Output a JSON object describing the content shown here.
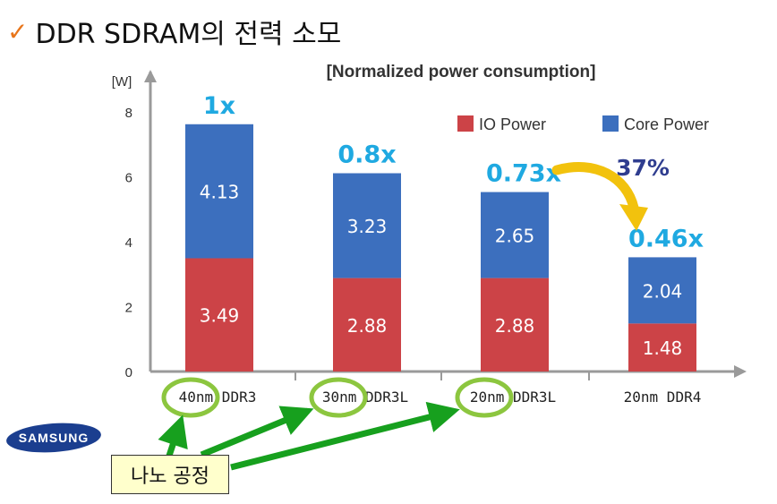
{
  "page": {
    "check_icon": "checkmark-icon",
    "title": "DDR SDRAM의 전력 소모"
  },
  "chart_data": {
    "type": "bar",
    "stacked": true,
    "title": "[Normalized power consumption]",
    "ylabel": "[W]",
    "ylim": [
      0,
      8
    ],
    "yticks": [
      "0",
      "2",
      "4",
      "6",
      "8"
    ],
    "categories": [
      "40nm DDR3",
      "30nm DDR3L",
      "20nm DDR3L",
      "20nm DDR4"
    ],
    "series": [
      {
        "name": "IO Power",
        "color": "#cc4347",
        "values": [
          3.49,
          2.88,
          2.88,
          1.48
        ],
        "labels": [
          "3.49",
          "2.88",
          "2.88",
          "1.48"
        ]
      },
      {
        "name": "Core Power",
        "color": "#3c6fbe",
        "values": [
          4.13,
          3.23,
          2.65,
          2.04
        ],
        "labels": [
          "4.13",
          "3.23",
          "2.65",
          "2.04"
        ]
      }
    ],
    "ratio_labels": [
      "1x",
      "0.8x",
      "0.73x",
      "0.46x"
    ],
    "ratio_color": "#1fa9e1",
    "reduction_label": "37%",
    "reduction_color": "#2f3d8f",
    "arrow_color": "#f2c20d",
    "legend_position": "top-right",
    "grid": false
  },
  "annotation": {
    "callout_text": "나노 공정",
    "highlight_color": "#8cc63f",
    "arrow_color": "#17a01e"
  },
  "logo": {
    "text": "SAMSUNG",
    "color": "#1b3e8f"
  }
}
